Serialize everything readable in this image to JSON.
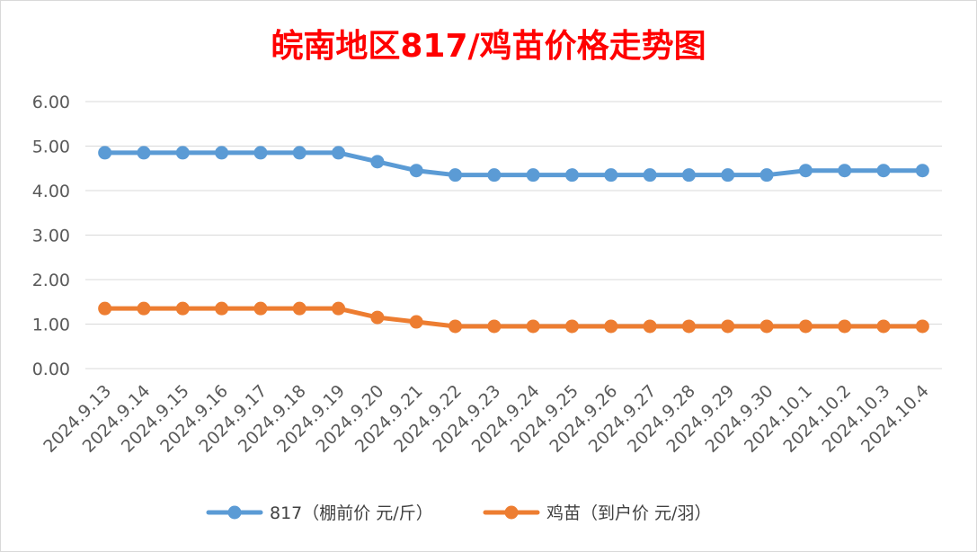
{
  "chart_data": {
    "type": "line",
    "title": "皖南地区817/鸡苗价格走势图",
    "xlabel": "",
    "ylabel": "",
    "ylim": [
      0,
      6
    ],
    "yticks": [
      "0.00",
      "1.00",
      "2.00",
      "3.00",
      "4.00",
      "5.00",
      "6.00"
    ],
    "grid": true,
    "legend_position": "bottom",
    "categories": [
      "2024.9.13",
      "2024.9.14",
      "2024.9.15",
      "2024.9.16",
      "2024.9.17",
      "2024.9.18",
      "2024.9.19",
      "2024.9.20",
      "2024.9.21",
      "2024.9.22",
      "2024.9.23",
      "2024.9.24",
      "2024.9.25",
      "2024.9.26",
      "2024.9.27",
      "2024.9.28",
      "2024.9.29",
      "2024.9.30",
      "2024.10.1",
      "2024.10.2",
      "2024.10.3",
      "2024.10.4"
    ],
    "series": [
      {
        "name": "817（棚前价 元/斤）",
        "color": "#5b9bd5",
        "values": [
          4.85,
          4.85,
          4.85,
          4.85,
          4.85,
          4.85,
          4.85,
          4.65,
          4.45,
          4.35,
          4.35,
          4.35,
          4.35,
          4.35,
          4.35,
          4.35,
          4.35,
          4.35,
          4.45,
          4.45,
          4.45,
          4.45
        ]
      },
      {
        "name": "鸡苗（到户价 元/羽）",
        "color": "#ed7d31",
        "values": [
          1.35,
          1.35,
          1.35,
          1.35,
          1.35,
          1.35,
          1.35,
          1.15,
          1.05,
          0.95,
          0.95,
          0.95,
          0.95,
          0.95,
          0.95,
          0.95,
          0.95,
          0.95,
          0.95,
          0.95,
          0.95,
          0.95
        ]
      }
    ]
  }
}
